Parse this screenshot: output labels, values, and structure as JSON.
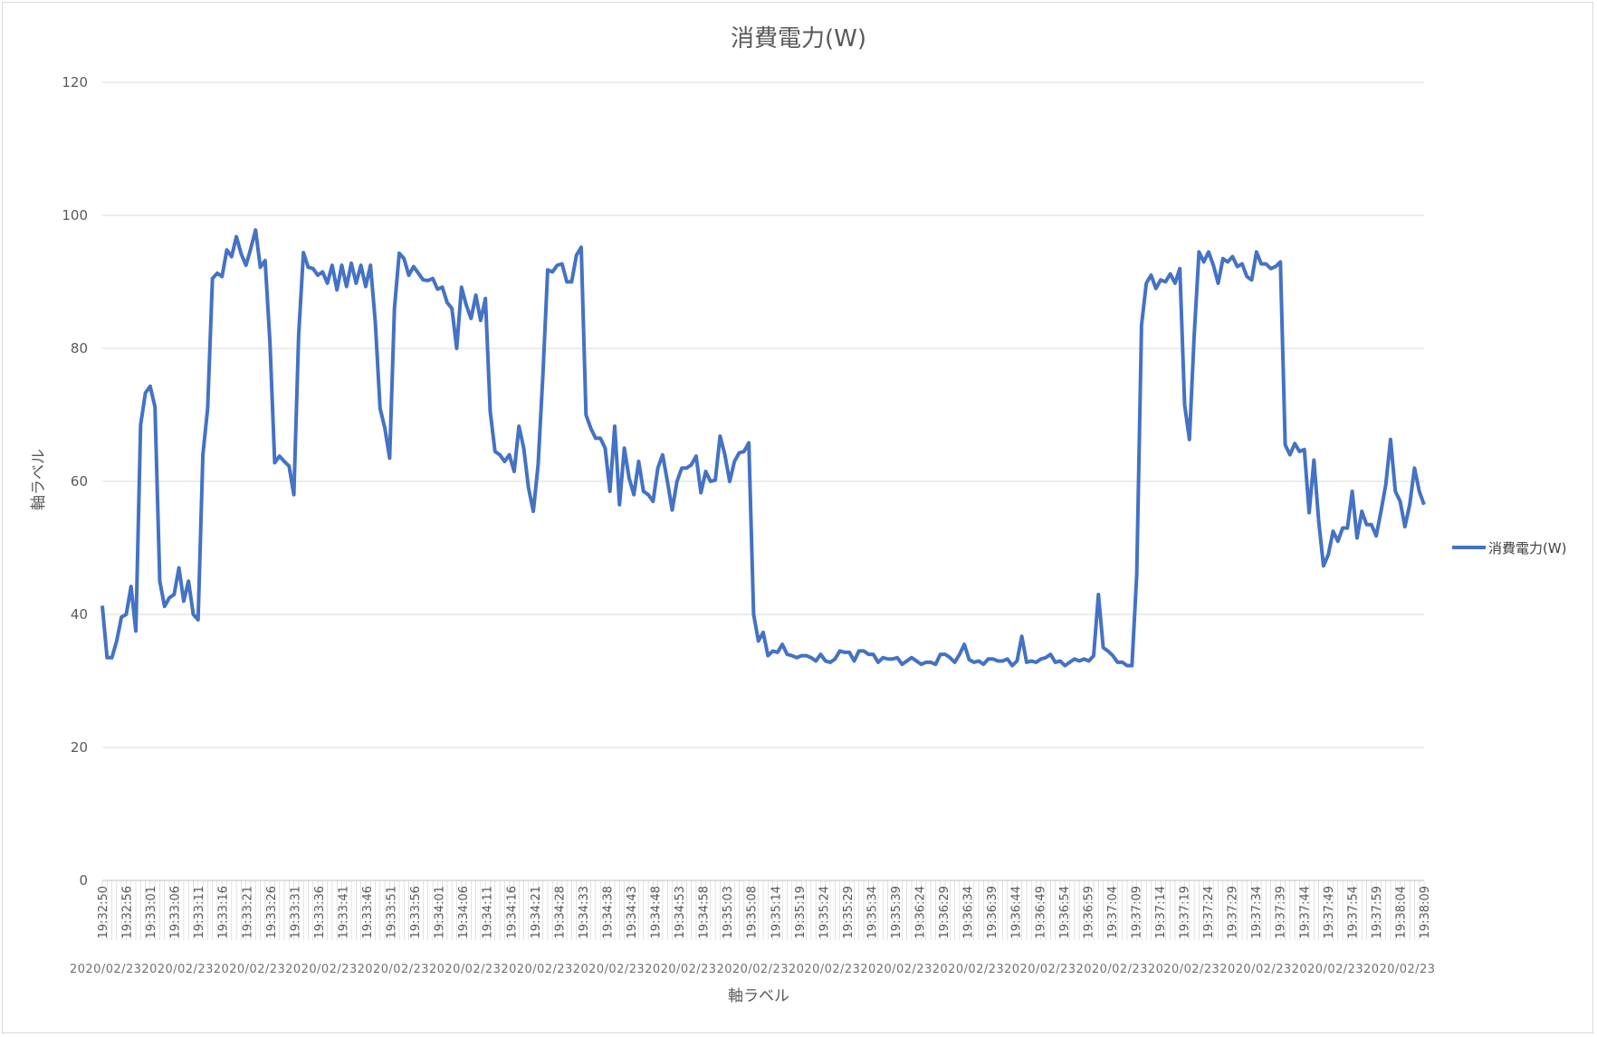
{
  "chart_data": {
    "type": "line",
    "title": "消費電力(W)",
    "xlabel": "軸ラベル",
    "ylabel": "軸ラベル",
    "ylim": [
      0,
      120
    ],
    "yticks": [
      0,
      20,
      40,
      60,
      80,
      100,
      120
    ],
    "grid": true,
    "legend": "right",
    "line_color": "#4472C4",
    "date_strip_text": "2020/02/23",
    "x_tick_labels": [
      "19:32:50",
      "19:32:56",
      "19:33:01",
      "19:33:06",
      "19:33:11",
      "19:33:16",
      "19:33:21",
      "19:33:26",
      "19:33:31",
      "19:33:36",
      "19:33:41",
      "19:33:46",
      "19:33:51",
      "19:33:56",
      "19:34:01",
      "19:34:06",
      "19:34:11",
      "19:34:16",
      "19:34:21",
      "19:34:28",
      "19:34:33",
      "19:34:38",
      "19:34:43",
      "19:34:48",
      "19:34:53",
      "19:34:58",
      "19:35:03",
      "19:35:08",
      "19:35:14",
      "19:35:19",
      "19:35:24",
      "19:35:29",
      "19:35:34",
      "19:35:39",
      "19:36:24",
      "19:36:29",
      "19:36:34",
      "19:36:39",
      "19:36:44",
      "19:36:49",
      "19:36:54",
      "19:36:59",
      "19:37:04",
      "19:37:09",
      "19:37:14",
      "19:37:19",
      "19:37:24",
      "19:37:29",
      "19:37:34",
      "19:37:39",
      "19:37:44",
      "19:37:49",
      "19:37:54",
      "19:37:59",
      "19:38:04",
      "19:38:09"
    ],
    "series": [
      {
        "name": "消費電力(W)",
        "values": [
          41.3,
          33.5,
          33.5,
          36,
          39.6,
          40,
          44.2,
          37.5,
          68.5,
          73.3,
          74.3,
          71.2,
          45,
          41.2,
          42.5,
          43,
          47,
          42,
          45,
          40,
          39.2,
          64,
          71,
          90.5,
          91.3,
          90.8,
          94.8,
          93.8,
          96.8,
          94.2,
          92.5,
          95,
          97.8,
          92.2,
          93.2,
          81,
          62.8,
          63.8,
          63,
          62.3,
          58,
          82,
          94.4,
          92.2,
          92,
          91,
          91.5,
          89.8,
          92.5,
          88.8,
          92.5,
          89.3,
          92.8,
          89.8,
          92.5,
          89.3,
          92.5,
          84,
          71,
          68,
          63.5,
          86,
          94.3,
          93.5,
          91,
          92.3,
          91.3,
          90.3,
          90.2,
          90.5,
          88.9,
          89.2,
          86.9,
          86,
          80,
          89.2,
          86.5,
          84.5,
          88,
          84.2,
          87.5,
          70.5,
          64.5,
          64,
          63,
          64,
          61.5,
          68.3,
          65,
          59,
          55.5,
          62.5,
          76,
          91.8,
          91.5,
          92.5,
          92.7,
          90,
          90,
          94,
          95.2,
          70,
          68,
          66.5,
          66.5,
          65,
          58.5,
          68.3,
          56.5,
          65,
          60.5,
          58,
          63,
          58.5,
          58,
          57,
          62,
          64,
          60,
          55.7,
          60,
          62,
          62,
          62.5,
          63.8,
          58.3,
          61.5,
          60,
          60.2,
          66.8,
          64,
          60,
          63,
          64.3,
          64.5,
          65.8,
          40,
          36,
          37.3,
          33.8,
          34.5,
          34.3,
          35.5,
          34,
          33.8,
          33.5,
          33.8,
          33.8,
          33.5,
          33,
          34,
          33,
          32.8,
          33.3,
          34.5,
          34.3,
          34.3,
          33,
          34.5,
          34.5,
          34,
          34,
          32.8,
          33.5,
          33.3,
          33.3,
          33.5,
          32.5,
          33,
          33.5,
          33,
          32.5,
          32.8,
          32.8,
          32.5,
          34,
          34,
          33.5,
          32.8,
          34,
          35.5,
          33.2,
          32.8,
          33,
          32.5,
          33.3,
          33.3,
          33,
          33,
          33.3,
          32.3,
          33,
          36.7,
          32.8,
          33,
          32.8,
          33.3,
          33.5,
          34,
          32.8,
          33,
          32.3,
          32.8,
          33.3,
          33,
          33.3,
          33,
          33.8,
          43,
          35,
          34.5,
          33.8,
          32.8,
          32.8,
          32.3,
          32.3,
          46,
          83.5,
          89.8,
          91,
          89,
          90.3,
          90,
          91.2,
          89.8,
          92,
          71.5,
          66.3,
          82,
          94.5,
          93,
          94.5,
          92.5,
          89.8,
          93.5,
          93,
          93.8,
          92.3,
          92.7,
          90.8,
          90.3,
          94.5,
          92.7,
          92.7,
          92,
          92.3,
          93,
          65.5,
          64,
          65.7,
          64.5,
          64.8,
          55.3,
          63.2,
          54,
          47.3,
          49,
          52.5,
          51,
          53,
          53,
          58.5,
          51.5,
          55.5,
          53.5,
          53.5,
          51.8,
          55.5,
          59.5,
          66.3,
          58.5,
          57,
          53.2,
          56.5,
          62,
          58.5,
          56.5
        ]
      }
    ]
  }
}
